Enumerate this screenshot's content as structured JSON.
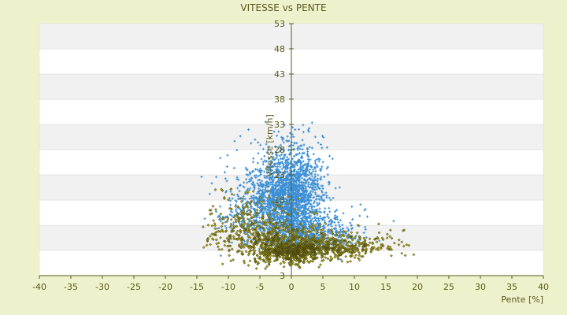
{
  "chart_data": {
    "type": "scatter",
    "title": "VITESSE vs PENTE",
    "xlabel": "Pente [%]",
    "ylabel": "Vitesse [km/h]",
    "xlim": [
      -40,
      40
    ],
    "ylim": [
      3,
      53
    ],
    "x_ticks": [
      "-40",
      "-35",
      "-30",
      "-25",
      "-20",
      "-15",
      "-10",
      "-5",
      "0",
      "5",
      "10",
      "15",
      "20",
      "25",
      "30",
      "35",
      "40"
    ],
    "y_ticks": [
      "53",
      "48",
      "43",
      "38",
      "33",
      "28",
      "23",
      "18",
      "13",
      "8",
      "3"
    ],
    "grid": true,
    "grid_style": "alternating horizontal bands",
    "legend": "none",
    "colors": {
      "background": "#eef2cc",
      "plot_band_light": "#ffffff",
      "plot_band_dark": "#f1f1f1",
      "axis": "#5a5a1e",
      "text": "#5a5a1e",
      "series_a": "#3b8fd6",
      "series_b": "#a7a020"
    },
    "series": [
      {
        "color": "#3b8fd6",
        "marker": "plus",
        "point_count": 2800,
        "clusters": [
          {
            "x_center": 0,
            "y_center": 17,
            "x_spread": 2.5,
            "y_spread": 6,
            "weight": 0.55
          },
          {
            "x_center": 3,
            "y_center": 10,
            "x_spread": 3.5,
            "y_spread": 3,
            "weight": 0.25
          },
          {
            "x_center": -5,
            "y_center": 14,
            "x_spread": 3,
            "y_spread": 5,
            "weight": 0.2
          }
        ],
        "x_range": [
          -15,
          19
        ],
        "y_range": [
          3.5,
          34
        ]
      },
      {
        "color": "#a7a020",
        "marker": "diamond",
        "point_count": 1600,
        "clusters": [
          {
            "x_center": 0,
            "y_center": 7,
            "x_spread": 3,
            "y_spread": 2,
            "weight": 0.4
          },
          {
            "x_center": 6,
            "y_center": 8,
            "x_spread": 5,
            "y_spread": 2,
            "weight": 0.3
          },
          {
            "x_center": -6,
            "y_center": 10,
            "x_spread": 4,
            "y_spread": 4,
            "weight": 0.3
          }
        ],
        "x_range": [
          -14,
          20
        ],
        "y_range": [
          3.5,
          35
        ]
      }
    ]
  }
}
